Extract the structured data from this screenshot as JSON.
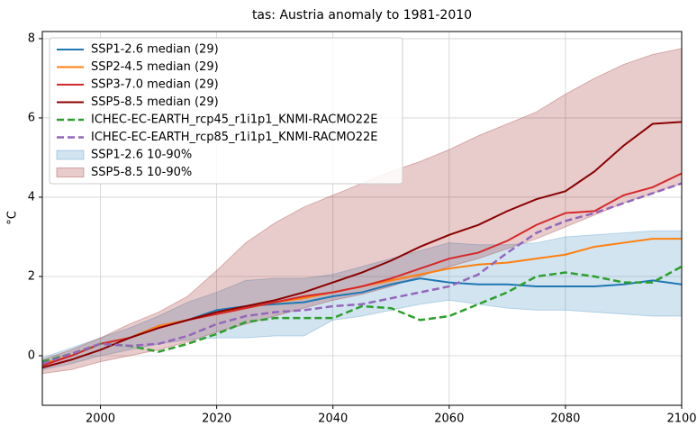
{
  "chart_data": {
    "type": "line",
    "title": "tas: Austria anomaly to 1981-2010",
    "y_label": "°C",
    "x": [
      1990,
      1995,
      2000,
      2005,
      2010,
      2015,
      2020,
      2025,
      2030,
      2035,
      2040,
      2045,
      2050,
      2055,
      2060,
      2065,
      2070,
      2075,
      2080,
      2085,
      2090,
      2095,
      2100
    ],
    "xlim": [
      1990,
      2100
    ],
    "xticks": [
      2000,
      2020,
      2040,
      2060,
      2080,
      2100
    ],
    "ylim": [
      -1.25,
      8.18
    ],
    "yticks": [
      0,
      2,
      4,
      6,
      8
    ],
    "grid": true,
    "legend": "upper left",
    "series": [
      {
        "name": "SSP1-2.6 median (29)",
        "color": "#1f77b4",
        "kind": "line",
        "dashed": false,
        "values": [
          -0.2,
          0.0,
          0.3,
          0.45,
          0.75,
          0.9,
          1.15,
          1.25,
          1.3,
          1.35,
          1.5,
          1.6,
          1.8,
          1.95,
          1.85,
          1.8,
          1.8,
          1.75,
          1.75,
          1.75,
          1.8,
          1.9,
          1.8
        ]
      },
      {
        "name": "SSP2-4.5 median (29)",
        "color": "#ff7f0e",
        "kind": "line",
        "dashed": false,
        "values": [
          -0.2,
          0.0,
          0.3,
          0.45,
          0.75,
          0.9,
          1.1,
          1.2,
          1.35,
          1.45,
          1.6,
          1.75,
          1.9,
          2.05,
          2.2,
          2.3,
          2.35,
          2.45,
          2.55,
          2.75,
          2.85,
          2.95,
          2.95
        ]
      },
      {
        "name": "SSP3-7.0 median (29)",
        "color": "#d62728",
        "kind": "line",
        "dashed": false,
        "values": [
          -0.25,
          0.0,
          0.3,
          0.45,
          0.7,
          0.9,
          1.05,
          1.2,
          1.35,
          1.5,
          1.6,
          1.75,
          1.95,
          2.2,
          2.45,
          2.6,
          2.9,
          3.3,
          3.6,
          3.65,
          4.05,
          4.25,
          4.6
        ]
      },
      {
        "name": "SSP5-8.5 median (29)",
        "color": "#8b0000",
        "kind": "line",
        "dashed": false,
        "values": [
          -0.3,
          -0.1,
          0.15,
          0.45,
          0.7,
          0.9,
          1.1,
          1.25,
          1.4,
          1.6,
          1.85,
          2.1,
          2.4,
          2.75,
          3.05,
          3.3,
          3.65,
          3.95,
          4.15,
          4.65,
          5.3,
          5.85,
          5.9
        ]
      },
      {
        "name": "ICHEC-EC-EARTH_rcp45_r1i1p1_KNMI-RACMO22E",
        "color": "#2ca02c",
        "kind": "line",
        "dashed": true,
        "values": [
          -0.15,
          0.05,
          0.3,
          0.25,
          0.1,
          0.3,
          0.55,
          0.85,
          0.95,
          0.95,
          0.95,
          1.25,
          1.2,
          0.9,
          1.0,
          1.3,
          1.6,
          2.0,
          2.1,
          2.0,
          1.85,
          1.85,
          2.25
        ]
      },
      {
        "name": "ICHEC-EC-EARTH_rcp85_r1i1p1_KNMI-RACMO22E",
        "color": "#9467bd",
        "kind": "line",
        "dashed": true,
        "values": [
          -0.2,
          0.05,
          0.3,
          0.25,
          0.3,
          0.5,
          0.8,
          1.0,
          1.1,
          1.15,
          1.25,
          1.3,
          1.45,
          1.6,
          1.75,
          2.05,
          2.6,
          3.1,
          3.4,
          3.6,
          3.85,
          4.1,
          4.35
        ]
      },
      {
        "name": "SSP1-2.6 10-90%",
        "color": "#1f77b4",
        "kind": "band",
        "low": [
          -0.35,
          -0.2,
          0.0,
          0.15,
          0.3,
          0.4,
          0.45,
          0.45,
          0.5,
          0.5,
          0.9,
          1.0,
          1.15,
          1.3,
          1.4,
          1.3,
          1.2,
          1.15,
          1.15,
          1.1,
          1.05,
          1.0,
          1.0
        ],
        "high": [
          -0.05,
          0.2,
          0.45,
          0.7,
          1.0,
          1.35,
          1.6,
          1.9,
          1.95,
          1.95,
          2.05,
          2.25,
          2.45,
          2.65,
          2.85,
          2.8,
          2.8,
          2.85,
          3.0,
          3.05,
          3.1,
          3.15,
          3.15
        ]
      },
      {
        "name": "SSP5-8.5 10-90%",
        "color": "#8b0000",
        "kind": "band",
        "low": [
          -0.45,
          -0.35,
          -0.15,
          0.0,
          0.15,
          0.35,
          0.6,
          0.8,
          1.0,
          1.2,
          1.4,
          1.55,
          1.75,
          2.0,
          2.25,
          2.45,
          2.7,
          2.95,
          3.25,
          3.55,
          3.85,
          4.1,
          4.35
        ],
        "high": [
          -0.1,
          0.15,
          0.45,
          0.8,
          1.1,
          1.5,
          2.15,
          2.85,
          3.35,
          3.75,
          4.05,
          4.35,
          4.65,
          4.9,
          5.2,
          5.55,
          5.85,
          6.15,
          6.6,
          7.0,
          7.35,
          7.6,
          7.75
        ]
      }
    ]
  }
}
